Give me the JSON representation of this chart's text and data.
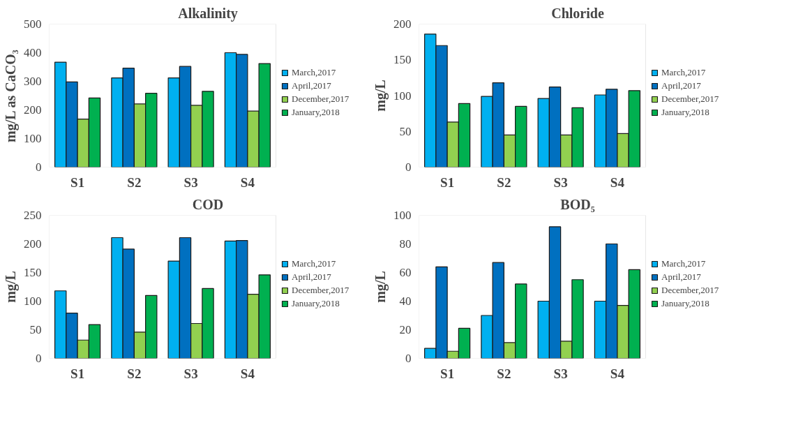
{
  "chart_data": [
    {
      "type": "bar",
      "title": "Alkalinity",
      "ylabel": "mg/L as CaCO₃",
      "categories": [
        "S1",
        "S2",
        "S3",
        "S4"
      ],
      "ylim": [
        0,
        500
      ],
      "yticks": [
        0,
        100,
        200,
        300,
        400,
        500
      ],
      "grid": false,
      "legend": "right",
      "series": [
        {
          "name": "March,2017",
          "color": "#00b0f0",
          "values": [
            367,
            312,
            312,
            400
          ]
        },
        {
          "name": "April,2017",
          "color": "#0070c0",
          "values": [
            298,
            346,
            352,
            394
          ]
        },
        {
          "name": "December,2017",
          "color": "#92d050",
          "values": [
            168,
            221,
            216,
            196
          ]
        },
        {
          "name": "January,2018",
          "color": "#00b050",
          "values": [
            242,
            258,
            265,
            362
          ]
        }
      ]
    },
    {
      "type": "bar",
      "title": "Chloride",
      "ylabel": "mg/L",
      "categories": [
        "S1",
        "S2",
        "S3",
        "S4"
      ],
      "ylim": [
        0,
        200
      ],
      "yticks": [
        0,
        50,
        100,
        150,
        200
      ],
      "grid": false,
      "legend": "right",
      "series": [
        {
          "name": "March,2017",
          "color": "#00b0f0",
          "values": [
            186,
            99,
            96,
            101
          ]
        },
        {
          "name": "April,2017",
          "color": "#0070c0",
          "values": [
            170,
            118,
            112,
            109
          ]
        },
        {
          "name": "December,2017",
          "color": "#92d050",
          "values": [
            63,
            45,
            45,
            47
          ]
        },
        {
          "name": "January,2018",
          "color": "#00b050",
          "values": [
            89,
            85,
            83,
            107
          ]
        }
      ]
    },
    {
      "type": "bar",
      "title": "COD",
      "ylabel": "mg/L",
      "categories": [
        "S1",
        "S2",
        "S3",
        "S4"
      ],
      "ylim": [
        0,
        250
      ],
      "yticks": [
        0,
        50,
        100,
        150,
        200,
        250
      ],
      "grid": false,
      "legend": "right",
      "series": [
        {
          "name": "March,2017",
          "color": "#00b0f0",
          "values": [
            118,
            211,
            170,
            205
          ]
        },
        {
          "name": "April,2017",
          "color": "#0070c0",
          "values": [
            79,
            191,
            211,
            206
          ]
        },
        {
          "name": "December,2017",
          "color": "#92d050",
          "values": [
            32,
            46,
            61,
            112
          ]
        },
        {
          "name": "January,2018",
          "color": "#00b050",
          "values": [
            59,
            110,
            122,
            146
          ]
        }
      ]
    },
    {
      "type": "bar",
      "title": "BOD₅",
      "ylabel": "mg/L",
      "categories": [
        "S1",
        "S2",
        "S3",
        "S4"
      ],
      "ylim": [
        0,
        100
      ],
      "yticks": [
        0,
        20,
        40,
        60,
        80,
        100
      ],
      "grid": false,
      "legend": "right",
      "series": [
        {
          "name": "March,2017",
          "color": "#00b0f0",
          "values": [
            7,
            30,
            40,
            40
          ]
        },
        {
          "name": "April,2017",
          "color": "#0070c0",
          "values": [
            64,
            67,
            92,
            80
          ]
        },
        {
          "name": "December,2017",
          "color": "#92d050",
          "values": [
            5,
            11,
            12,
            37
          ]
        },
        {
          "name": "January,2018",
          "color": "#00b050",
          "values": [
            21,
            52,
            55,
            62
          ]
        }
      ]
    }
  ]
}
